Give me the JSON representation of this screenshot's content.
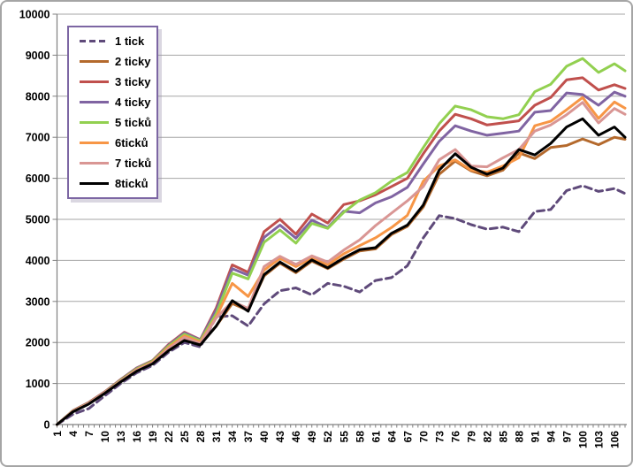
{
  "chart_data": {
    "type": "line",
    "title": "",
    "xlabel": "",
    "ylabel": "",
    "ylim": [
      0,
      10000
    ],
    "grid": true,
    "legend_position": "top-left",
    "y_tick_labels": [
      "0",
      "1000",
      "2000",
      "3000",
      "4000",
      "5000",
      "6000",
      "7000",
      "8000",
      "9000",
      "10000"
    ],
    "x_labels": [
      1,
      4,
      7,
      10,
      13,
      16,
      19,
      22,
      25,
      28,
      31,
      34,
      37,
      40,
      43,
      46,
      49,
      52,
      55,
      58,
      61,
      64,
      67,
      70,
      73,
      76,
      79,
      82,
      85,
      88,
      91,
      94,
      97,
      100,
      103,
      106
    ],
    "x_min": 1,
    "x_max": 108,
    "x_sampled": [
      1,
      4,
      7,
      10,
      13,
      16,
      19,
      22,
      25,
      28,
      31,
      34,
      37,
      40,
      43,
      46,
      49,
      52,
      55,
      58,
      61,
      64,
      67,
      70,
      73,
      76,
      79,
      82,
      85,
      88,
      91,
      94,
      97,
      100,
      103,
      106,
      108
    ],
    "colors": {
      "gridline": "#a6a6a6",
      "axis": "#808080",
      "legend_border": "#7c66a3",
      "text": "#000000"
    },
    "series": [
      {
        "name": "1 tick",
        "color": "#5f4a7a",
        "dash": true,
        "values": [
          0,
          250,
          390,
          700,
          1000,
          1260,
          1440,
          1760,
          2000,
          1890,
          2620,
          2650,
          2400,
          2940,
          3260,
          3330,
          3160,
          3440,
          3370,
          3230,
          3510,
          3580,
          3870,
          4550,
          5090,
          5020,
          4870,
          4760,
          4810,
          4700,
          5190,
          5240,
          5700,
          5820,
          5680,
          5750,
          5630
        ]
      },
      {
        "name": "2 ticky",
        "color": "#b4692c",
        "dash": false,
        "values": [
          0,
          320,
          510,
          770,
          1045,
          1310,
          1490,
          1820,
          2080,
          1950,
          2400,
          2950,
          2780,
          3620,
          3930,
          3700,
          3980,
          3800,
          4030,
          4230,
          4280,
          4630,
          4830,
          5300,
          6100,
          6420,
          6180,
          6060,
          6200,
          6620,
          6480,
          6750,
          6800,
          6960,
          6820,
          7000,
          6950
        ]
      },
      {
        "name": "3 ticky",
        "color": "#c0504d",
        "dash": false,
        "values": [
          0,
          340,
          540,
          800,
          1100,
          1380,
          1560,
          1950,
          2250,
          2070,
          2840,
          3890,
          3710,
          4700,
          5000,
          4640,
          5130,
          4910,
          5360,
          5450,
          5600,
          5800,
          6000,
          6600,
          7150,
          7560,
          7450,
          7300,
          7350,
          7400,
          7780,
          7970,
          8400,
          8450,
          8150,
          8280,
          8190
        ]
      },
      {
        "name": "4 ticky",
        "color": "#8064a2",
        "dash": false,
        "values": [
          0,
          335,
          530,
          790,
          1090,
          1370,
          1550,
          1930,
          2230,
          2060,
          2790,
          3800,
          3640,
          4560,
          4860,
          4540,
          4980,
          4800,
          5200,
          5160,
          5400,
          5550,
          5780,
          6350,
          6900,
          7280,
          7150,
          7050,
          7100,
          7150,
          7610,
          7650,
          8080,
          8040,
          7780,
          8100,
          8000
        ]
      },
      {
        "name": "5 ticků",
        "color": "#92d050",
        "dash": false,
        "values": [
          0,
          330,
          525,
          785,
          1080,
          1355,
          1540,
          1910,
          2200,
          2040,
          2700,
          3690,
          3550,
          4440,
          4740,
          4420,
          4900,
          4780,
          5170,
          5470,
          5650,
          5930,
          6140,
          6750,
          7330,
          7760,
          7670,
          7500,
          7450,
          7550,
          8110,
          8290,
          8730,
          8920,
          8580,
          8790,
          8620
        ]
      },
      {
        "name": "6ticků",
        "color": "#f79646",
        "dash": false,
        "values": [
          0,
          325,
          520,
          780,
          1065,
          1340,
          1520,
          1880,
          2160,
          2010,
          2620,
          3440,
          3120,
          3760,
          4050,
          3850,
          4060,
          3890,
          4160,
          4360,
          4550,
          4800,
          5100,
          5930,
          6300,
          6450,
          6200,
          6150,
          6300,
          6500,
          7280,
          7390,
          7670,
          7970,
          7460,
          7860,
          7710
        ]
      },
      {
        "name": "7 ticků",
        "color": "#d99694",
        "dash": false,
        "values": [
          0,
          320,
          515,
          775,
          1055,
          1325,
          1500,
          1850,
          2120,
          1980,
          2600,
          3000,
          2830,
          3850,
          4100,
          3900,
          4110,
          3960,
          4250,
          4500,
          4850,
          5150,
          5450,
          5800,
          6450,
          6700,
          6300,
          6280,
          6500,
          6700,
          7150,
          7300,
          7550,
          7850,
          7350,
          7700,
          7560
        ]
      },
      {
        "name": "8ticků",
        "color": "#000000",
        "dash": false,
        "values": [
          0,
          310,
          500,
          760,
          1040,
          1300,
          1480,
          1800,
          2050,
          1940,
          2400,
          3020,
          2760,
          3650,
          3960,
          3730,
          4010,
          3820,
          4060,
          4260,
          4310,
          4660,
          4860,
          5350,
          6200,
          6600,
          6270,
          6100,
          6250,
          6700,
          6570,
          6850,
          7250,
          7450,
          7050,
          7250,
          7000
        ]
      }
    ]
  }
}
